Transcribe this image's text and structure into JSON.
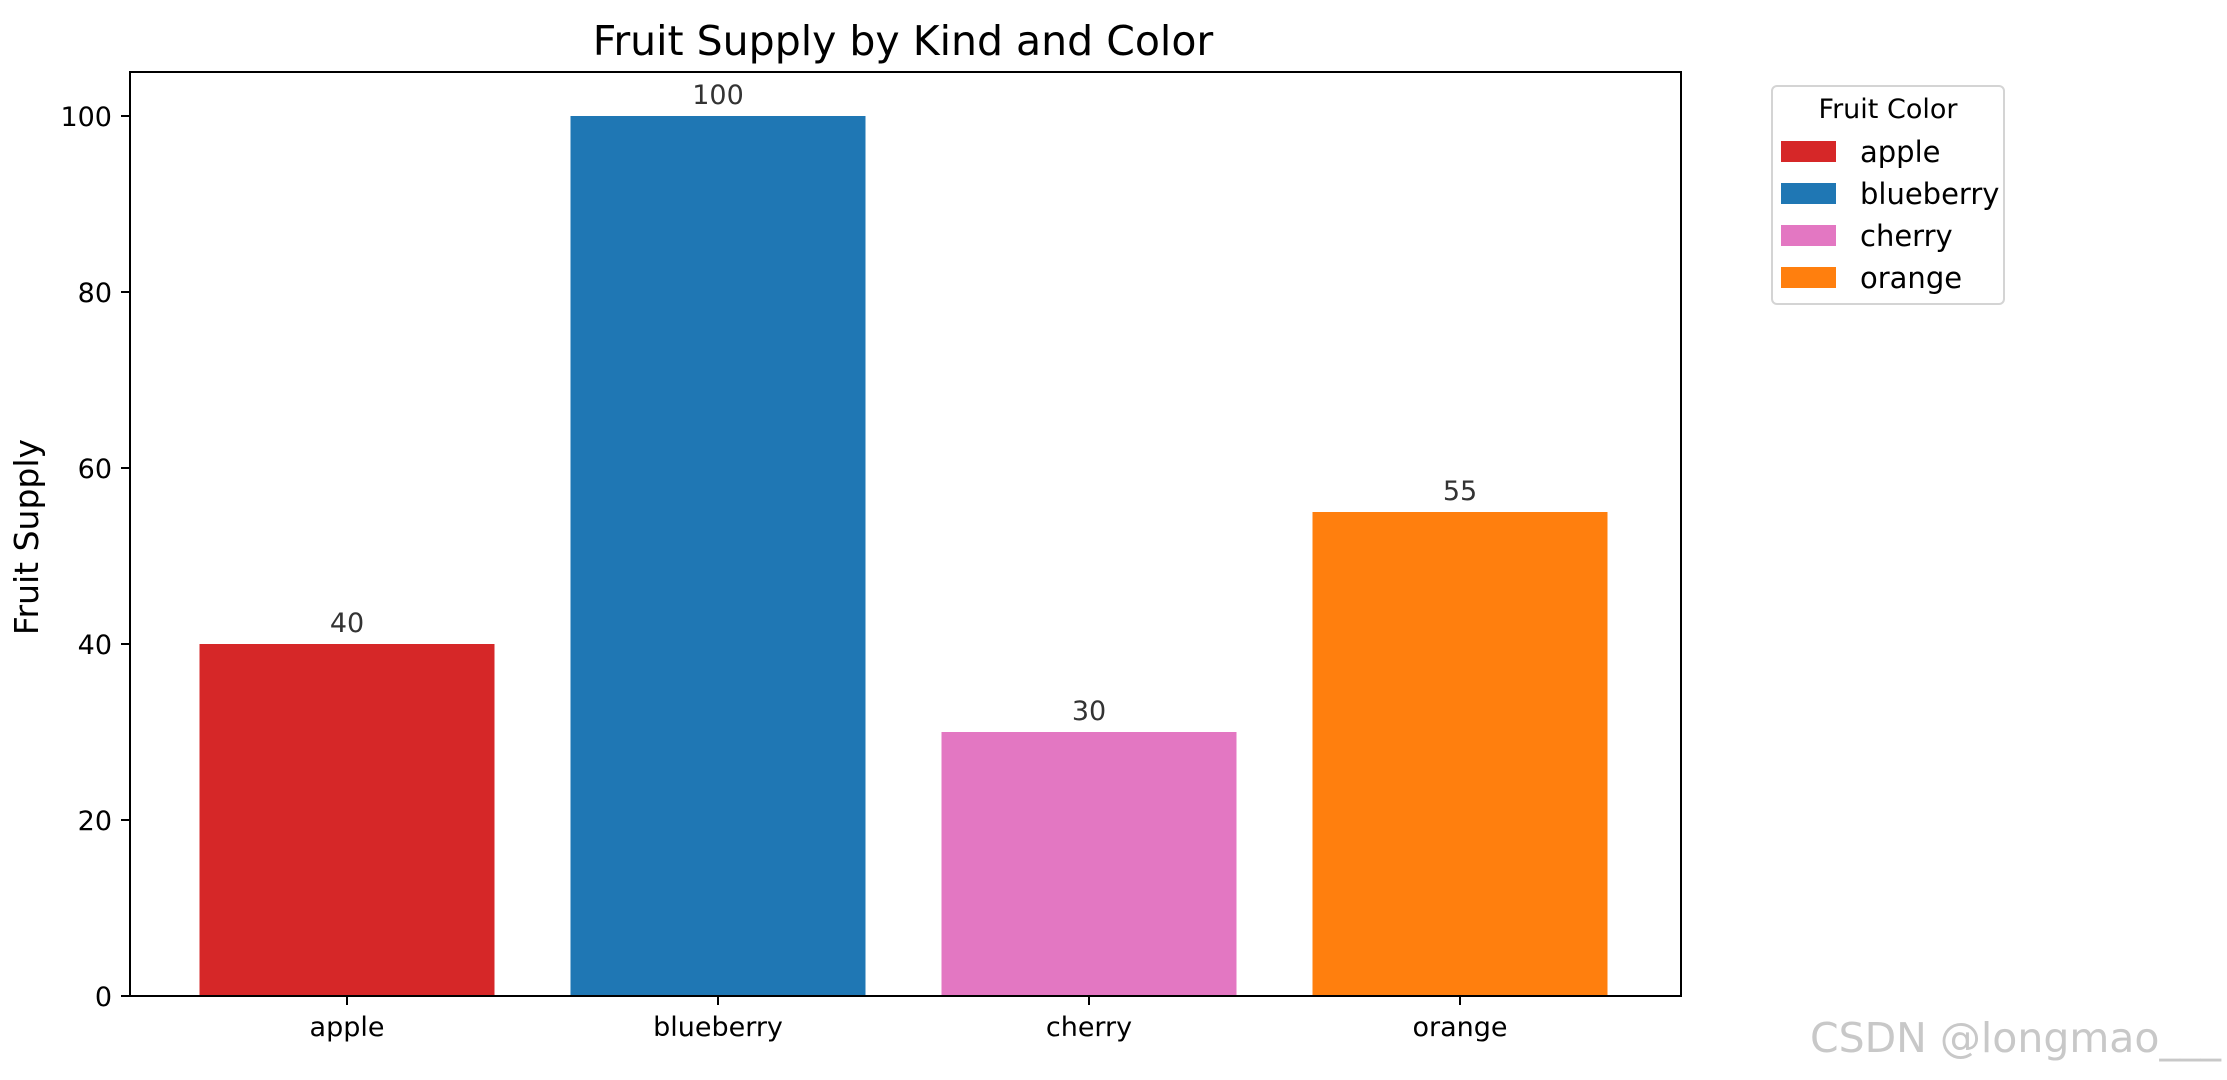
{
  "chart_data": {
    "type": "bar",
    "title": "Fruit Supply by Kind and Color",
    "ylabel": "Fruit Supply",
    "xlabel": "",
    "categories": [
      "apple",
      "blueberry",
      "cherry",
      "orange"
    ],
    "values": [
      40,
      100,
      30,
      55
    ],
    "colors": [
      "#d62728",
      "#1f77b4",
      "#e377c2",
      "#ff7f0e"
    ],
    "ylim": [
      0,
      105
    ],
    "yticks": [
      0,
      20,
      40,
      60,
      80,
      100
    ],
    "legend": {
      "title": "Fruit Color",
      "placement": "outside-top-right",
      "entries": [
        "apple",
        "blueberry",
        "cherry",
        "orange"
      ]
    },
    "grid": false
  },
  "watermark": "CSDN @longmao___"
}
